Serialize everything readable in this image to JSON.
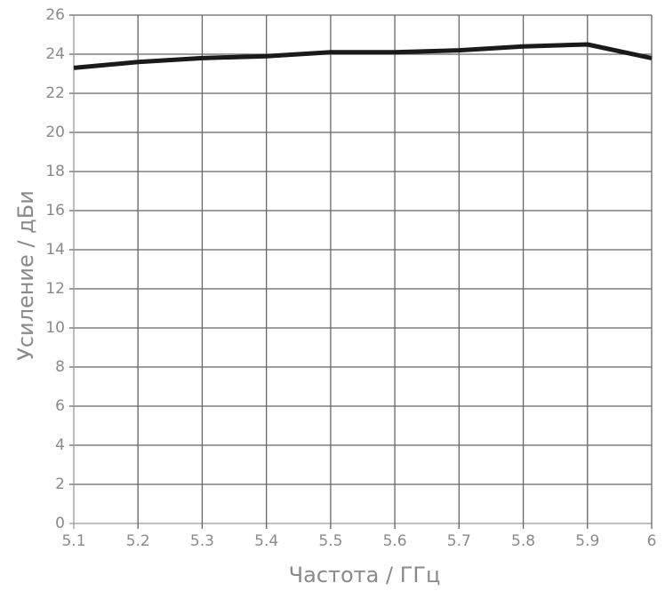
{
  "chart_data": {
    "type": "line",
    "xlabel": "Частота / ГГц",
    "ylabel": "Усиление / дБи",
    "x": [
      5.1,
      5.2,
      5.3,
      5.4,
      5.5,
      5.6,
      5.7,
      5.8,
      5.9,
      6
    ],
    "values": [
      23.3,
      23.6,
      23.8,
      23.9,
      24.1,
      24.1,
      24.2,
      24.4,
      24.5,
      23.8
    ],
    "color": "#1a1a1a",
    "xlim": [
      5.1,
      6
    ],
    "xticks": [
      5.1,
      5.2,
      5.3,
      5.4,
      5.5,
      5.6,
      5.7,
      5.8,
      5.9,
      6
    ],
    "ylim": [
      0,
      26
    ],
    "yticks": [
      0,
      2,
      4,
      6,
      8,
      10,
      12,
      14,
      16,
      18,
      20,
      22,
      24,
      26
    ],
    "grid": true
  }
}
